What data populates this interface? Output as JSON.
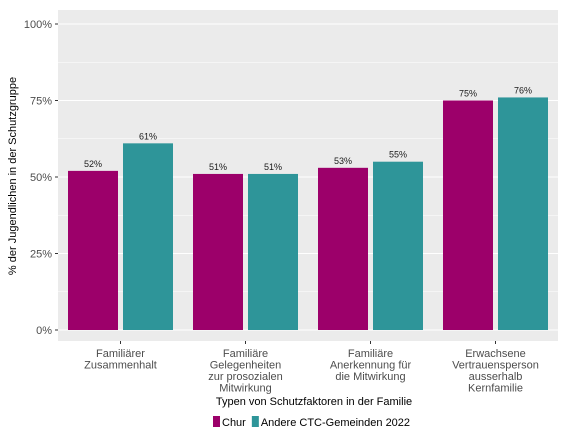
{
  "chart_data": {
    "type": "bar",
    "categories": [
      [
        "Familiärer",
        "Zusammenhalt"
      ],
      [
        "Familiäre",
        "Gelegenheiten",
        "zur prosozialen",
        "Mitwirkung"
      ],
      [
        "Familiäre",
        "Anerkennung für",
        "die Mitwirkung"
      ],
      [
        "Erwachsene",
        "Vertrauensperson",
        "ausserhalb",
        "Kernfamilie"
      ]
    ],
    "series": [
      {
        "name": "Chur",
        "color": "#9c006a",
        "values": [
          52,
          51,
          53,
          75
        ],
        "labels": [
          "52%",
          "51%",
          "53%",
          "75%"
        ]
      },
      {
        "name": "Andere CTC-Gemeinden 2022",
        "color": "#2e9599",
        "values": [
          61,
          51,
          55,
          76
        ],
        "labels": [
          "61%",
          "51%",
          "55%",
          "76%"
        ]
      }
    ],
    "xlabel": "Typen von Schutzfaktoren in der Familie",
    "ylabel": "% der Jugendlichen in der Schutzgruppe",
    "ylim": [
      0,
      100
    ],
    "yticks": [
      0,
      25,
      50,
      75,
      100
    ],
    "ytick_labels": [
      "0%",
      "25%",
      "50%",
      "75%",
      "100%"
    ],
    "grid": true,
    "legend": "bottom",
    "background": "#ebebeb",
    "grid_color": "#ffffff"
  }
}
